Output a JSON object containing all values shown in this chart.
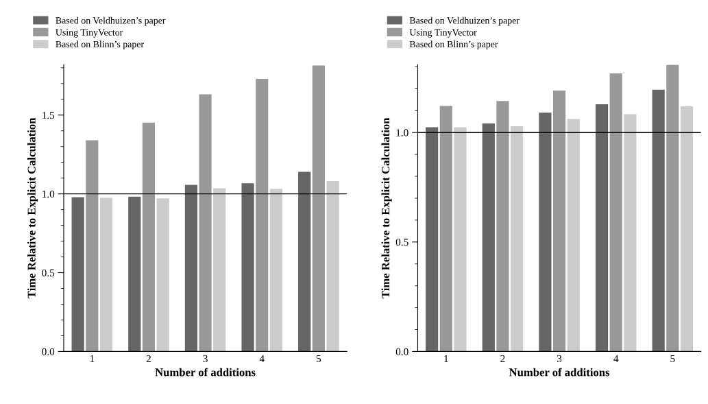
{
  "chart_data": [
    {
      "type": "bar",
      "xlabel": "Number of additions",
      "ylabel": "Time Relative to Explicit Calculation",
      "categories": [
        "1",
        "2",
        "3",
        "4",
        "5"
      ],
      "series": [
        {
          "name": "Based on Veldhuizen’s paper",
          "color": "#666666",
          "values": [
            0.979,
            0.982,
            1.057,
            1.067,
            1.14
          ]
        },
        {
          "name": "Using TinyVector",
          "color": "#999999",
          "values": [
            1.34,
            1.452,
            1.632,
            1.73,
            1.814
          ]
        },
        {
          "name": "Based on Blinn’s paper",
          "color": "#cccccc",
          "values": [
            0.976,
            0.971,
            1.035,
            1.032,
            1.081
          ]
        }
      ],
      "ylim": [
        0,
        1.82
      ],
      "yticks": [
        {
          "value": 0,
          "label": "0.0"
        },
        {
          "value": 0.5,
          "label": "0.5"
        },
        {
          "value": 1,
          "label": "1.0"
        },
        {
          "value": 1.5,
          "label": "1.5"
        }
      ],
      "ref_lines": [
        {
          "axis": "y",
          "value": 1.0
        }
      ],
      "legend": "top left",
      "grid": false
    },
    {
      "type": "bar",
      "xlabel": "Number of additions",
      "ylabel": "Time Relative to Explicit Calculation",
      "categories": [
        "1",
        "2",
        "3",
        "4",
        "5"
      ],
      "series": [
        {
          "name": "Based on Veldhuizen’s paper",
          "color": "#666666",
          "values": [
            1.024,
            1.041,
            1.091,
            1.129,
            1.196
          ]
        },
        {
          "name": "Using TinyVector",
          "color": "#999999",
          "values": [
            1.121,
            1.144,
            1.192,
            1.27,
            1.309
          ]
        },
        {
          "name": "Based on Blinn’s paper",
          "color": "#cccccc",
          "values": [
            1.024,
            1.029,
            1.062,
            1.084,
            1.12
          ]
        }
      ],
      "ylim": [
        0,
        1.31
      ],
      "yticks": [
        {
          "value": 0,
          "label": "0.0"
        },
        {
          "value": 0.5,
          "label": "0.5"
        },
        {
          "value": 1,
          "label": "1.0"
        }
      ],
      "ref_lines": [
        {
          "axis": "y",
          "value": 1.0
        }
      ],
      "legend": "top left",
      "grid": false
    }
  ]
}
